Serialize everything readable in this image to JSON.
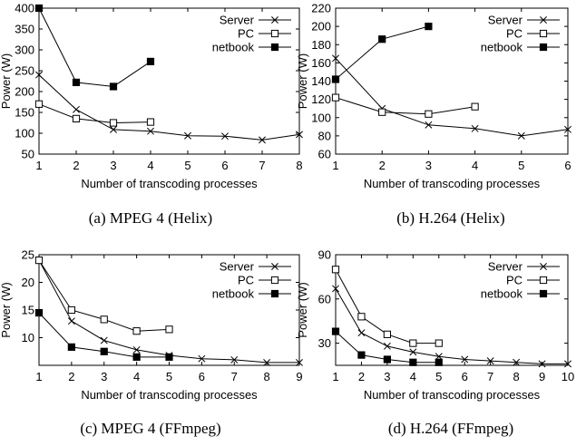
{
  "chart_data": [
    {
      "id": "a",
      "type": "line",
      "caption": "(a) MPEG 4 (Helix)",
      "xlabel": "Number of transcoding processes",
      "ylabel": "Power (W)",
      "xlim": [
        1,
        8
      ],
      "ylim": [
        50,
        400
      ],
      "xticks": [
        1,
        2,
        3,
        4,
        5,
        6,
        7,
        8
      ],
      "yticks": [
        50,
        100,
        150,
        200,
        250,
        300,
        350,
        400
      ],
      "legend_position": "top-right",
      "series": [
        {
          "name": "Server",
          "marker": "x",
          "x": [
            1,
            2,
            3,
            4,
            5,
            6,
            7,
            8
          ],
          "y": [
            240,
            157,
            109,
            105,
            94,
            93,
            84,
            97
          ]
        },
        {
          "name": "PC",
          "marker": "open-square",
          "x": [
            1,
            2,
            3,
            4
          ],
          "y": [
            170,
            135,
            125,
            127
          ]
        },
        {
          "name": "netbook",
          "marker": "filled-square",
          "x": [
            1,
            2,
            3,
            4
          ],
          "y": [
            400,
            222,
            212,
            272
          ]
        }
      ]
    },
    {
      "id": "b",
      "type": "line",
      "caption": "(b) H.264 (Helix)",
      "xlabel": "Number of transcoding processes",
      "ylabel": "Power (W)",
      "xlim": [
        1,
        6
      ],
      "ylim": [
        60,
        220
      ],
      "xticks": [
        1,
        2,
        3,
        4,
        5,
        6
      ],
      "yticks": [
        60,
        80,
        100,
        120,
        140,
        160,
        180,
        200,
        220
      ],
      "legend_position": "top-right",
      "series": [
        {
          "name": "Server",
          "marker": "x",
          "x": [
            1,
            2,
            3,
            4,
            5,
            6
          ],
          "y": [
            165,
            110,
            92,
            88,
            80,
            87
          ]
        },
        {
          "name": "PC",
          "marker": "open-square",
          "x": [
            1,
            2,
            3,
            4
          ],
          "y": [
            122,
            106,
            104,
            112
          ]
        },
        {
          "name": "netbook",
          "marker": "filled-square",
          "x": [
            1,
            2,
            3
          ],
          "y": [
            142,
            186,
            200
          ]
        }
      ]
    },
    {
      "id": "c",
      "type": "line",
      "caption": "(c) MPEG 4 (FFmpeg)",
      "xlabel": "Number of transcoding processes",
      "ylabel": "Power (W)",
      "xlim": [
        1,
        9
      ],
      "ylim": [
        5,
        25
      ],
      "xticks": [
        1,
        2,
        3,
        4,
        5,
        6,
        7,
        8,
        9
      ],
      "yticks": [
        10,
        15,
        20,
        25
      ],
      "legend_position": "top-right",
      "series": [
        {
          "name": "Server",
          "marker": "x",
          "x": [
            1,
            2,
            3,
            4,
            5,
            6,
            7,
            8,
            9
          ],
          "y": [
            24,
            13,
            9.5,
            7.8,
            6.8,
            6.2,
            6.0,
            5.5,
            5.5
          ]
        },
        {
          "name": "PC",
          "marker": "open-square",
          "x": [
            1,
            2,
            3,
            4,
            5
          ],
          "y": [
            24,
            15,
            13.3,
            11.2,
            11.5
          ]
        },
        {
          "name": "netbook",
          "marker": "filled-square",
          "x": [
            1,
            2,
            3,
            4,
            5
          ],
          "y": [
            14.5,
            8.3,
            7.5,
            6.5,
            6.5
          ]
        }
      ]
    },
    {
      "id": "d",
      "type": "line",
      "caption": "(d) H.264 (FFmpeg)",
      "xlabel": "Number of transcoding processes",
      "ylabel": "Power (W)",
      "xlim": [
        1,
        10
      ],
      "ylim": [
        15,
        90
      ],
      "xticks": [
        1,
        2,
        3,
        4,
        5,
        6,
        7,
        8,
        9,
        10
      ],
      "yticks": [
        30,
        60,
        90
      ],
      "legend_position": "top-right",
      "series": [
        {
          "name": "Server",
          "marker": "x",
          "x": [
            1,
            2,
            3,
            4,
            5,
            6,
            7,
            8,
            9,
            10
          ],
          "y": [
            67,
            37,
            28,
            24,
            21,
            19,
            18,
            17,
            16,
            16
          ]
        },
        {
          "name": "PC",
          "marker": "open-square",
          "x": [
            1,
            2,
            3,
            4,
            5
          ],
          "y": [
            80,
            48,
            36,
            30,
            30
          ]
        },
        {
          "name": "netbook",
          "marker": "filled-square",
          "x": [
            1,
            2,
            3,
            4,
            5
          ],
          "y": [
            38,
            22,
            19,
            17,
            17
          ]
        }
      ]
    }
  ]
}
